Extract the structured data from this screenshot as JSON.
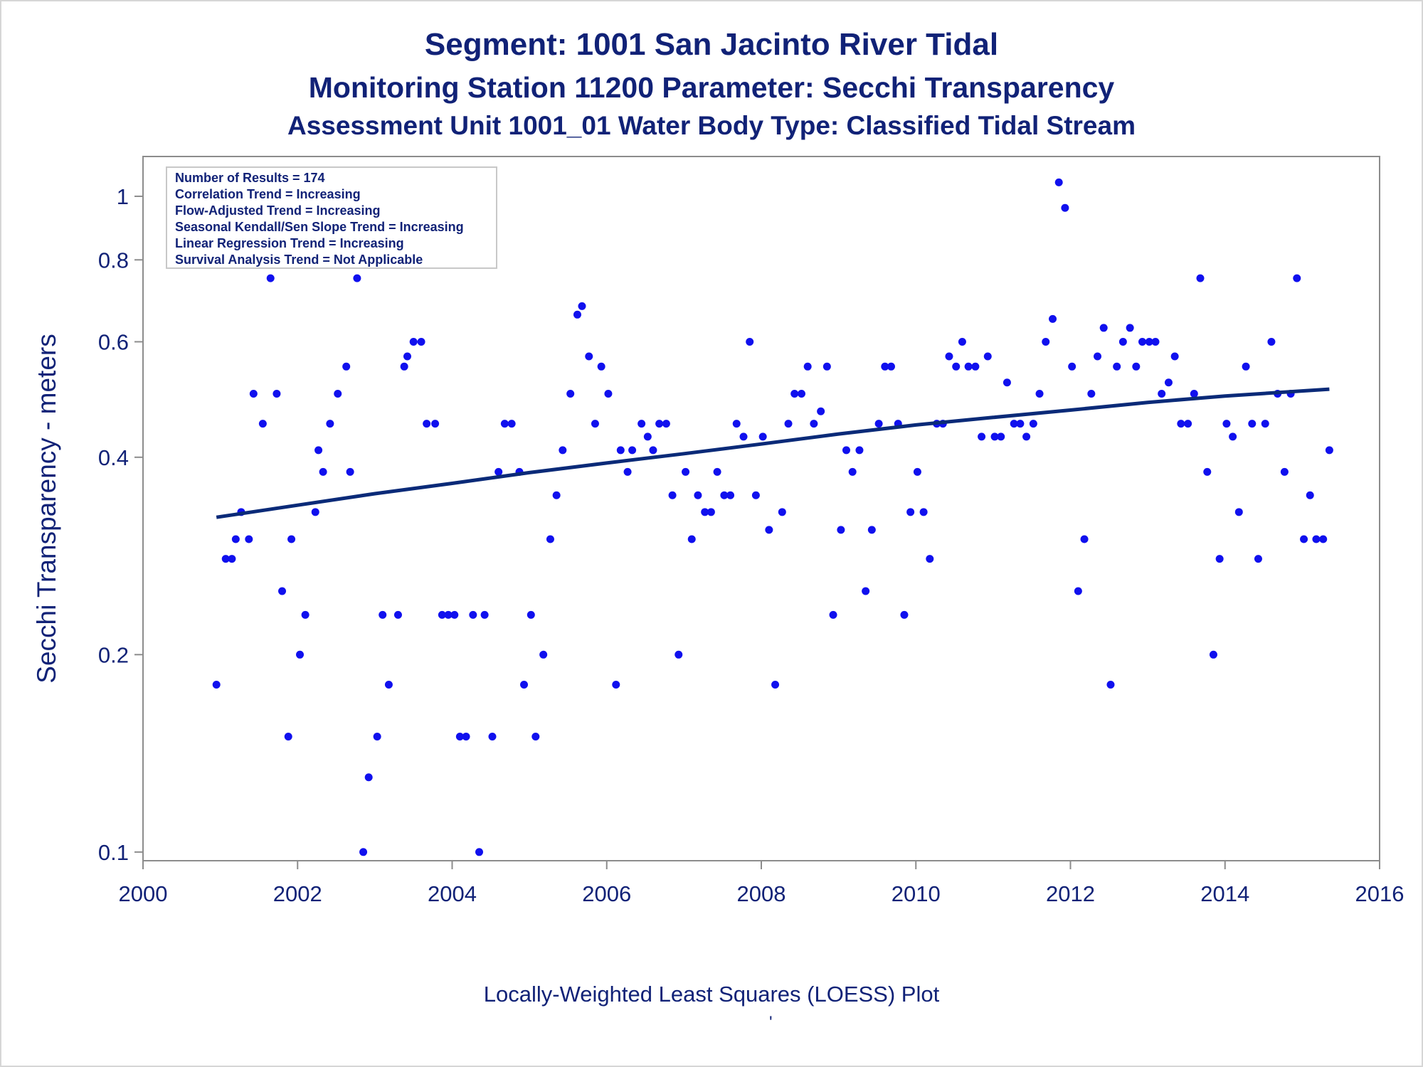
{
  "titles": {
    "line1": "Segment: 1001  San Jacinto River Tidal",
    "line2": "Monitoring Station 11200 Parameter: Secchi Transparency",
    "line3": "Assessment Unit 1001_01   Water Body Type: Classified Tidal Stream"
  },
  "footnote": {
    "text": "Locally-Weighted Least Squares (LOESS) Plot",
    "mark": "'"
  },
  "stats_box": [
    "Number of Results = 174",
    "Correlation Trend = Increasing",
    "Flow-Adjusted Trend = Increasing",
    "Seasonal Kendall/Sen Slope Trend = Increasing",
    "Linear Regression Trend = Increasing",
    "Survival Analysis Trend = Not Applicable"
  ],
  "colors": {
    "points": "#1010ee",
    "trend": "#0a2a78",
    "text": "#112277",
    "axis": "#8c8c8c"
  },
  "chart_data": {
    "type": "scatter",
    "xlabel": "",
    "ylabel": "Secchi Transparency - meters",
    "x_scale": "linear",
    "y_scale": "log",
    "xlim": [
      2000,
      2016
    ],
    "ylim": [
      0.097,
      1.15
    ],
    "x_ticks": [
      2000,
      2002,
      2004,
      2006,
      2008,
      2010,
      2012,
      2014,
      2016
    ],
    "y_ticks": [
      0.1,
      0.2,
      0.4,
      0.6,
      0.8,
      1
    ],
    "y_tick_labels": [
      "0.1",
      "0.2",
      "0.4",
      "0.6",
      "0.8",
      "1"
    ],
    "points": [
      [
        2000.95,
        0.18
      ],
      [
        2001.07,
        0.28
      ],
      [
        2001.15,
        0.28
      ],
      [
        2001.2,
        0.3
      ],
      [
        2001.27,
        0.33
      ],
      [
        2001.37,
        0.3
      ],
      [
        2001.43,
        0.5
      ],
      [
        2001.55,
        0.45
      ],
      [
        2001.65,
        0.75
      ],
      [
        2001.73,
        0.5
      ],
      [
        2001.8,
        0.25
      ],
      [
        2001.88,
        0.15
      ],
      [
        2001.92,
        0.3
      ],
      [
        2002.03,
        0.2
      ],
      [
        2002.1,
        0.23
      ],
      [
        2002.23,
        0.33
      ],
      [
        2002.27,
        0.41
      ],
      [
        2002.33,
        0.38
      ],
      [
        2002.42,
        0.45
      ],
      [
        2002.52,
        0.5
      ],
      [
        2002.63,
        0.55
      ],
      [
        2002.68,
        0.38
      ],
      [
        2002.77,
        0.75
      ],
      [
        2002.85,
        0.1
      ],
      [
        2002.92,
        0.13
      ],
      [
        2003.03,
        0.15
      ],
      [
        2003.1,
        0.23
      ],
      [
        2003.18,
        0.18
      ],
      [
        2003.3,
        0.23
      ],
      [
        2003.38,
        0.55
      ],
      [
        2003.42,
        0.57
      ],
      [
        2003.5,
        0.6
      ],
      [
        2003.6,
        0.6
      ],
      [
        2003.67,
        0.45
      ],
      [
        2003.78,
        0.45
      ],
      [
        2003.87,
        0.23
      ],
      [
        2003.95,
        0.23
      ],
      [
        2004.03,
        0.23
      ],
      [
        2004.1,
        0.15
      ],
      [
        2004.18,
        0.15
      ],
      [
        2004.27,
        0.23
      ],
      [
        2004.35,
        0.1
      ],
      [
        2004.42,
        0.23
      ],
      [
        2004.52,
        0.15
      ],
      [
        2004.6,
        0.38
      ],
      [
        2004.68,
        0.45
      ],
      [
        2004.77,
        0.45
      ],
      [
        2004.87,
        0.38
      ],
      [
        2004.93,
        0.18
      ],
      [
        2005.02,
        0.23
      ],
      [
        2005.08,
        0.15
      ],
      [
        2005.18,
        0.2
      ],
      [
        2005.27,
        0.3
      ],
      [
        2005.35,
        0.35
      ],
      [
        2005.43,
        0.41
      ],
      [
        2005.53,
        0.5
      ],
      [
        2005.62,
        0.66
      ],
      [
        2005.68,
        0.68
      ],
      [
        2005.77,
        0.57
      ],
      [
        2005.85,
        0.45
      ],
      [
        2005.93,
        0.55
      ],
      [
        2006.02,
        0.5
      ],
      [
        2006.12,
        0.18
      ],
      [
        2006.18,
        0.41
      ],
      [
        2006.27,
        0.38
      ],
      [
        2006.33,
        0.41
      ],
      [
        2006.45,
        0.45
      ],
      [
        2006.53,
        0.43
      ],
      [
        2006.6,
        0.41
      ],
      [
        2006.68,
        0.45
      ],
      [
        2006.77,
        0.45
      ],
      [
        2006.85,
        0.35
      ],
      [
        2006.93,
        0.2
      ],
      [
        2007.02,
        0.38
      ],
      [
        2007.1,
        0.3
      ],
      [
        2007.18,
        0.35
      ],
      [
        2007.27,
        0.33
      ],
      [
        2007.35,
        0.33
      ],
      [
        2007.43,
        0.38
      ],
      [
        2007.52,
        0.35
      ],
      [
        2007.6,
        0.35
      ],
      [
        2007.68,
        0.45
      ],
      [
        2007.77,
        0.43
      ],
      [
        2007.85,
        0.6
      ],
      [
        2007.93,
        0.35
      ],
      [
        2008.02,
        0.43
      ],
      [
        2008.1,
        0.31
      ],
      [
        2008.18,
        0.18
      ],
      [
        2008.27,
        0.33
      ],
      [
        2008.35,
        0.45
      ],
      [
        2008.43,
        0.5
      ],
      [
        2008.52,
        0.5
      ],
      [
        2008.6,
        0.55
      ],
      [
        2008.68,
        0.45
      ],
      [
        2008.77,
        0.47
      ],
      [
        2008.85,
        0.55
      ],
      [
        2008.93,
        0.23
      ],
      [
        2009.03,
        0.31
      ],
      [
        2009.1,
        0.41
      ],
      [
        2009.18,
        0.38
      ],
      [
        2009.27,
        0.41
      ],
      [
        2009.35,
        0.25
      ],
      [
        2009.43,
        0.31
      ],
      [
        2009.52,
        0.45
      ],
      [
        2009.6,
        0.55
      ],
      [
        2009.68,
        0.55
      ],
      [
        2009.77,
        0.45
      ],
      [
        2009.85,
        0.23
      ],
      [
        2009.93,
        0.33
      ],
      [
        2010.02,
        0.38
      ],
      [
        2010.1,
        0.33
      ],
      [
        2010.18,
        0.28
      ],
      [
        2010.27,
        0.45
      ],
      [
        2010.35,
        0.45
      ],
      [
        2010.43,
        0.57
      ],
      [
        2010.52,
        0.55
      ],
      [
        2010.6,
        0.6
      ],
      [
        2010.68,
        0.55
      ],
      [
        2010.77,
        0.55
      ],
      [
        2010.85,
        0.43
      ],
      [
        2010.93,
        0.57
      ],
      [
        2011.02,
        0.43
      ],
      [
        2011.1,
        0.43
      ],
      [
        2011.18,
        0.52
      ],
      [
        2011.27,
        0.45
      ],
      [
        2011.35,
        0.45
      ],
      [
        2011.43,
        0.43
      ],
      [
        2011.52,
        0.45
      ],
      [
        2011.6,
        0.5
      ],
      [
        2011.68,
        0.6
      ],
      [
        2011.77,
        0.65
      ],
      [
        2011.85,
        1.05
      ],
      [
        2011.93,
        0.96
      ],
      [
        2012.02,
        0.55
      ],
      [
        2012.1,
        0.25
      ],
      [
        2012.18,
        0.3
      ],
      [
        2012.27,
        0.5
      ],
      [
        2012.35,
        0.57
      ],
      [
        2012.43,
        0.63
      ],
      [
        2012.52,
        0.18
      ],
      [
        2012.6,
        0.55
      ],
      [
        2012.68,
        0.6
      ],
      [
        2012.77,
        0.63
      ],
      [
        2012.85,
        0.55
      ],
      [
        2012.93,
        0.6
      ],
      [
        2013.02,
        0.6
      ],
      [
        2013.1,
        0.6
      ],
      [
        2013.18,
        0.5
      ],
      [
        2013.27,
        0.52
      ],
      [
        2013.35,
        0.57
      ],
      [
        2013.43,
        0.45
      ],
      [
        2013.52,
        0.45
      ],
      [
        2013.6,
        0.5
      ],
      [
        2013.68,
        0.75
      ],
      [
        2013.77,
        0.38
      ],
      [
        2013.85,
        0.2
      ],
      [
        2013.93,
        0.28
      ],
      [
        2014.02,
        0.45
      ],
      [
        2014.1,
        0.43
      ],
      [
        2014.18,
        0.33
      ],
      [
        2014.27,
        0.55
      ],
      [
        2014.35,
        0.45
      ],
      [
        2014.43,
        0.28
      ],
      [
        2014.52,
        0.45
      ],
      [
        2014.6,
        0.6
      ],
      [
        2014.68,
        0.5
      ],
      [
        2014.77,
        0.38
      ],
      [
        2014.85,
        0.5
      ],
      [
        2014.93,
        0.75
      ],
      [
        2015.02,
        0.3
      ],
      [
        2015.1,
        0.35
      ],
      [
        2015.18,
        0.3
      ],
      [
        2015.27,
        0.3
      ],
      [
        2015.35,
        0.41
      ]
    ],
    "trend": [
      [
        2000.95,
        0.324
      ],
      [
        2002.0,
        0.338
      ],
      [
        2003.0,
        0.352
      ],
      [
        2004.0,
        0.365
      ],
      [
        2005.0,
        0.379
      ],
      [
        2006.0,
        0.392
      ],
      [
        2007.0,
        0.405
      ],
      [
        2008.0,
        0.419
      ],
      [
        2009.0,
        0.434
      ],
      [
        2010.0,
        0.448
      ],
      [
        2011.0,
        0.46
      ],
      [
        2012.0,
        0.472
      ],
      [
        2013.0,
        0.485
      ],
      [
        2014.0,
        0.496
      ],
      [
        2015.35,
        0.508
      ]
    ]
  }
}
